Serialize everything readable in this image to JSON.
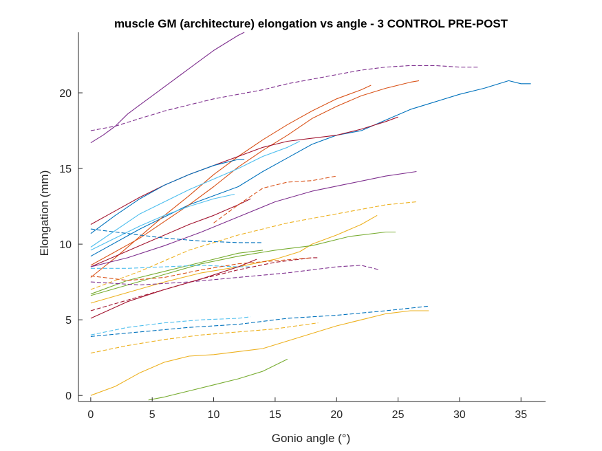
{
  "chart_data": {
    "type": "line",
    "title": "muscle GM (architecture) elongation vs angle - 3 CONTROL PRE-POST",
    "xlabel": "Gonio angle (°)",
    "ylabel": "Elongation (mm)",
    "xlim": [
      -1,
      37
    ],
    "ylim": [
      -0.4,
      24
    ],
    "xticks": [
      0,
      5,
      10,
      15,
      20,
      25,
      30,
      35
    ],
    "yticks": [
      0,
      5,
      10,
      15,
      20
    ],
    "grid": false,
    "series": [
      {
        "color": "#7E2F8E",
        "dash": false,
        "x": [
          0,
          1,
          2,
          3,
          4,
          5,
          6,
          7,
          8,
          9,
          10,
          11,
          12,
          12.5
        ],
        "y": [
          16.7,
          17.2,
          17.8,
          18.6,
          19.2,
          19.8,
          20.4,
          21.0,
          21.6,
          22.2,
          22.8,
          23.3,
          23.8,
          24.0
        ]
      },
      {
        "color": "#7E2F8E",
        "dash": true,
        "x": [
          0,
          2,
          4,
          6,
          8,
          10,
          12,
          14,
          16,
          18,
          20,
          22,
          24,
          26,
          28,
          30,
          31.5
        ],
        "y": [
          17.5,
          17.8,
          18.3,
          18.8,
          19.2,
          19.6,
          19.9,
          20.2,
          20.6,
          20.9,
          21.2,
          21.5,
          21.7,
          21.8,
          21.8,
          21.7,
          21.7
        ]
      },
      {
        "color": "#0072BD",
        "dash": false,
        "x": [
          0,
          4,
          8,
          12,
          14,
          16,
          18,
          20,
          22,
          24,
          26,
          28,
          30,
          32,
          34,
          35,
          35.8
        ],
        "y": [
          9.2,
          11.0,
          12.6,
          13.8,
          14.8,
          15.7,
          16.6,
          17.2,
          17.5,
          18.2,
          18.9,
          19.4,
          19.9,
          20.3,
          20.8,
          20.6,
          20.6
        ]
      },
      {
        "color": "#D95319",
        "dash": false,
        "x": [
          0,
          2,
          4,
          6,
          8,
          10,
          12,
          14,
          16,
          18,
          20,
          22,
          24,
          26,
          26.7
        ],
        "y": [
          8.6,
          9.5,
          10.4,
          11.5,
          12.6,
          13.8,
          15.1,
          16.2,
          17.2,
          18.3,
          19.1,
          19.8,
          20.3,
          20.7,
          20.8
        ]
      },
      {
        "color": "#D95319",
        "dash": false,
        "x": [
          0,
          2,
          4,
          6,
          8,
          10,
          12,
          14,
          16,
          18,
          20,
          22,
          22.8
        ],
        "y": [
          7.8,
          9.1,
          10.5,
          11.9,
          13.2,
          14.6,
          15.8,
          16.9,
          17.9,
          18.8,
          19.6,
          20.2,
          20.5
        ]
      },
      {
        "color": "#A2142F",
        "dash": false,
        "x": [
          0,
          2,
          4,
          6,
          8,
          10,
          12,
          14,
          16,
          18,
          20,
          22,
          24,
          25
        ],
        "y": [
          11.3,
          12.2,
          13.1,
          13.9,
          14.6,
          15.2,
          15.8,
          16.4,
          16.8,
          17.0,
          17.2,
          17.6,
          18.1,
          18.4
        ]
      },
      {
        "color": "#0072BD",
        "dash": false,
        "x": [
          0,
          2,
          4,
          6,
          8,
          10,
          12,
          12.5
        ],
        "y": [
          10.7,
          11.9,
          13.0,
          13.9,
          14.6,
          15.2,
          15.6,
          15.6
        ]
      },
      {
        "color": "#4DBEEE",
        "dash": false,
        "x": [
          0,
          2,
          4,
          6,
          8,
          10,
          11.7
        ],
        "y": [
          9.6,
          10.4,
          11.2,
          11.9,
          12.5,
          13.0,
          13.3
        ]
      },
      {
        "color": "#4DBEEE",
        "dash": false,
        "x": [
          0,
          4,
          8,
          12,
          14,
          16,
          17
        ],
        "y": [
          9.8,
          12.0,
          13.6,
          15.0,
          15.8,
          16.4,
          16.8
        ]
      },
      {
        "color": "#A2142F",
        "dash": false,
        "x": [
          0,
          2,
          4,
          6,
          8,
          10,
          12,
          13
        ],
        "y": [
          8.5,
          9.2,
          9.9,
          10.6,
          11.3,
          11.9,
          12.6,
          13.0
        ]
      },
      {
        "color": "#7E2F8E",
        "dash": false,
        "x": [
          0,
          3,
          6,
          9,
          12,
          15,
          18,
          21,
          24,
          26.5
        ],
        "y": [
          8.5,
          9.1,
          9.9,
          10.8,
          11.8,
          12.8,
          13.5,
          14.0,
          14.5,
          14.8
        ]
      },
      {
        "color": "#D95319",
        "dash": true,
        "x": [
          10,
          12,
          14,
          16,
          18,
          20
        ],
        "y": [
          11.4,
          12.6,
          13.7,
          14.1,
          14.2,
          14.5
        ]
      },
      {
        "color": "#EDB120",
        "dash": true,
        "x": [
          0,
          4,
          8,
          12,
          16,
          20,
          24,
          26.5
        ],
        "y": [
          7.0,
          8.2,
          9.6,
          10.6,
          11.4,
          12.0,
          12.6,
          12.8
        ]
      },
      {
        "color": "#0072BD",
        "dash": true,
        "x": [
          0,
          3,
          6,
          9,
          12,
          14
        ],
        "y": [
          11.0,
          10.7,
          10.4,
          10.2,
          10.1,
          10.1
        ]
      },
      {
        "color": "#EDB120",
        "dash": false,
        "x": [
          0,
          3,
          6,
          9,
          12,
          15,
          17,
          18,
          20,
          22,
          23.3
        ],
        "y": [
          6.1,
          6.8,
          7.5,
          8.1,
          8.5,
          9.0,
          9.5,
          10.0,
          10.6,
          11.3,
          11.9
        ]
      },
      {
        "color": "#77AC30",
        "dash": false,
        "x": [
          0,
          3,
          6,
          9,
          12,
          15,
          18,
          21,
          24,
          24.8
        ],
        "y": [
          6.6,
          7.3,
          8.0,
          8.7,
          9.2,
          9.6,
          9.9,
          10.5,
          10.8,
          10.8
        ]
      },
      {
        "color": "#77AC30",
        "dash": false,
        "x": [
          0,
          3,
          6,
          9,
          12,
          14
        ],
        "y": [
          6.7,
          7.6,
          8.2,
          8.8,
          9.4,
          9.6
        ]
      },
      {
        "color": "#A2142F",
        "dash": true,
        "x": [
          0,
          3,
          6,
          9,
          12,
          15,
          18,
          18.5
        ],
        "y": [
          5.6,
          6.3,
          7.0,
          7.7,
          8.3,
          8.8,
          9.1,
          9.1
        ]
      },
      {
        "color": "#7E2F8E",
        "dash": true,
        "x": [
          0,
          4,
          8,
          12,
          16,
          20,
          22,
          23.5
        ],
        "y": [
          7.5,
          7.3,
          7.5,
          7.8,
          8.1,
          8.5,
          8.6,
          8.3
        ]
      },
      {
        "color": "#4DBEEE",
        "dash": true,
        "x": [
          0,
          3,
          6,
          9,
          12,
          13
        ],
        "y": [
          8.4,
          8.4,
          8.5,
          8.6,
          8.5,
          8.5
        ]
      },
      {
        "color": "#D95319",
        "dash": true,
        "x": [
          0,
          3,
          6,
          9,
          12,
          15,
          18
        ],
        "y": [
          7.9,
          7.6,
          7.8,
          8.3,
          8.7,
          8.9,
          9.1
        ]
      },
      {
        "color": "#A2142F",
        "dash": false,
        "x": [
          0,
          3,
          6,
          9,
          12,
          13.5
        ],
        "y": [
          5.1,
          6.2,
          7.0,
          7.7,
          8.5,
          9.0
        ]
      },
      {
        "color": "#4DBEEE",
        "dash": true,
        "x": [
          0,
          3,
          6,
          9,
          12,
          13
        ],
        "y": [
          4.0,
          4.5,
          4.8,
          5.0,
          5.1,
          5.2
        ]
      },
      {
        "color": "#0072BD",
        "dash": true,
        "x": [
          0,
          4,
          8,
          12,
          16,
          20,
          24,
          27.5
        ],
        "y": [
          3.9,
          4.2,
          4.5,
          4.7,
          5.1,
          5.3,
          5.6,
          5.9
        ]
      },
      {
        "color": "#EDB120",
        "dash": true,
        "x": [
          0,
          3,
          6,
          9,
          12,
          15,
          18.5
        ],
        "y": [
          2.8,
          3.3,
          3.7,
          4.0,
          4.2,
          4.4,
          4.8
        ]
      },
      {
        "color": "#EDB120",
        "dash": false,
        "x": [
          0,
          2,
          4,
          6,
          8,
          10,
          12,
          14,
          16,
          18,
          20,
          22,
          24,
          26,
          27.5
        ],
        "y": [
          0.0,
          0.6,
          1.5,
          2.2,
          2.6,
          2.7,
          2.9,
          3.1,
          3.6,
          4.1,
          4.6,
          5.0,
          5.4,
          5.6,
          5.6
        ]
      },
      {
        "color": "#77AC30",
        "dash": false,
        "x": [
          4.7,
          6,
          8,
          10,
          12,
          14,
          16
        ],
        "y": [
          -0.3,
          -0.1,
          0.3,
          0.7,
          1.1,
          1.6,
          2.4
        ]
      }
    ]
  }
}
